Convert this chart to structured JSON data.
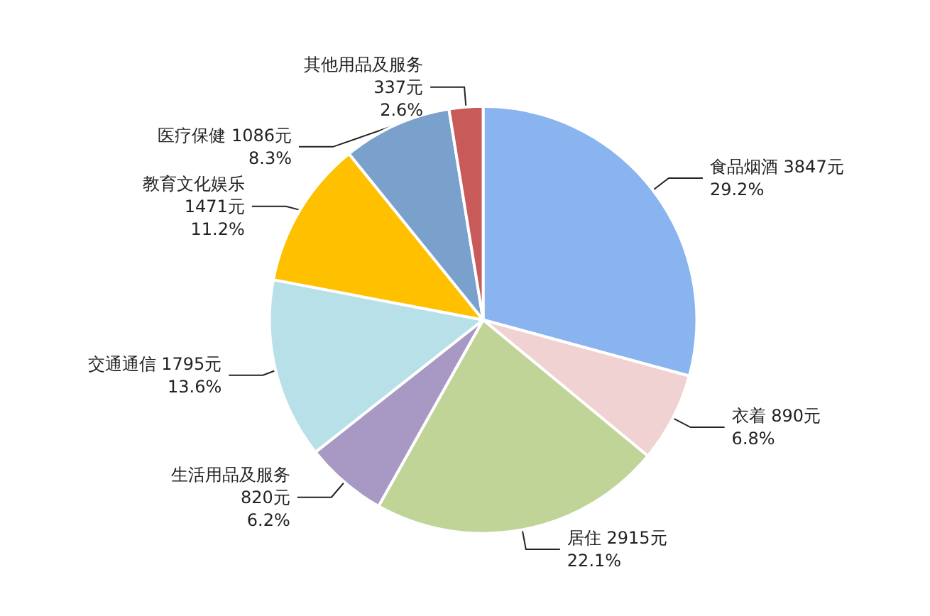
{
  "chart_data": {
    "type": "pie",
    "categories": [
      "食品烟酒",
      "衣着",
      "居住",
      "生活用品及服务",
      "交通通信",
      "教育文化娱乐",
      "医疗保健",
      "其他用品及服务"
    ],
    "values": [
      3847,
      890,
      2915,
      820,
      1795,
      1471,
      1086,
      337
    ],
    "value_labels": [
      " 3847元\n29.2%",
      " 890元\n6.8%",
      " 2915元\n22.1%",
      "\n820元\n6.2%",
      " 1795元\n13.6%",
      "\n1471元\n11.2%",
      " 1086元\n8.3%",
      "\n337元\n2.6%"
    ],
    "colors": [
      "#8ab4f0",
      "#f0d2d2",
      "#c0d498",
      "#a899c4",
      "#b8e0e8",
      "#ffc000",
      "#7aa0cc",
      "#c85a5a"
    ],
    "legend": false
  }
}
